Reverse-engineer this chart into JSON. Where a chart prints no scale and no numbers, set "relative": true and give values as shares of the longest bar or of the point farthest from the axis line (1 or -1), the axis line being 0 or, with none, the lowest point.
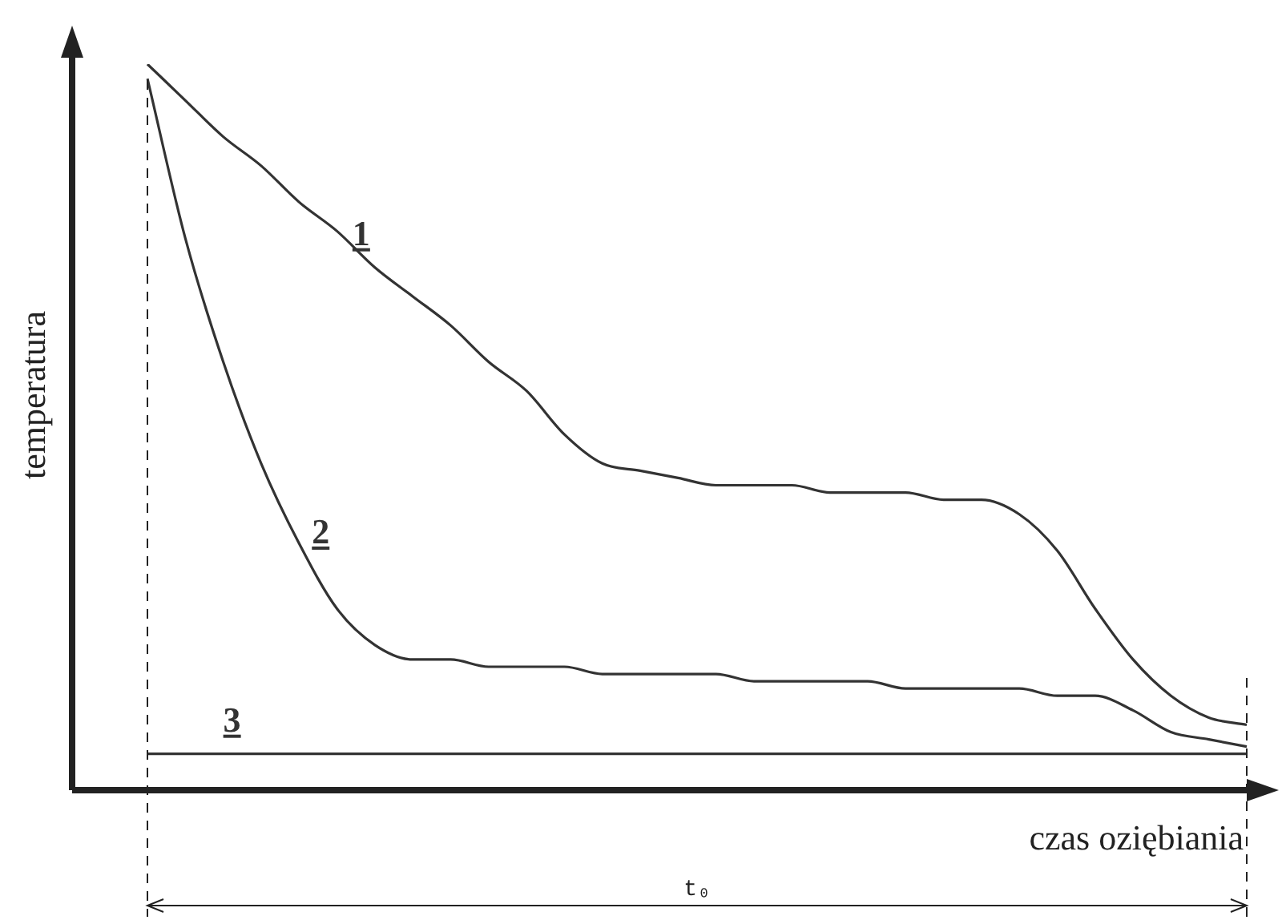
{
  "chart_data": {
    "type": "line",
    "relative": true,
    "xlabel": "czas oziębiania",
    "ylabel": "temperatura",
    "categories": [
      null,
      null,
      null,
      null,
      null,
      null,
      null,
      null,
      null,
      null,
      null,
      null,
      null,
      null,
      null,
      null,
      null,
      null,
      null,
      null,
      null,
      null,
      null,
      null,
      null,
      null,
      null,
      null,
      null,
      null
    ],
    "series": [
      {
        "name": "1",
        "color": "#333333",
        "values": [
          1.0,
          0.95,
          0.9,
          0.86,
          0.81,
          0.77,
          0.72,
          0.68,
          0.64,
          0.59,
          0.55,
          0.49,
          0.45,
          0.44,
          0.43,
          0.42,
          0.42,
          0.42,
          0.41,
          0.41,
          0.41,
          0.4,
          0.4,
          0.38,
          0.33,
          0.25,
          0.18,
          0.13,
          0.1,
          0.09
        ]
      },
      {
        "name": "2",
        "color": "#333333",
        "values": [
          0.98,
          0.76,
          0.59,
          0.45,
          0.34,
          0.25,
          0.2,
          0.18,
          0.18,
          0.17,
          0.17,
          0.17,
          0.16,
          0.16,
          0.16,
          0.16,
          0.15,
          0.15,
          0.15,
          0.15,
          0.14,
          0.14,
          0.14,
          0.14,
          0.13,
          0.13,
          0.11,
          0.08,
          0.07,
          0.06
        ]
      },
      {
        "name": "3",
        "color": "#333333",
        "values": [
          0.05,
          0.05,
          0.05,
          0.05,
          0.05,
          0.05,
          0.05,
          0.05,
          0.05,
          0.05,
          0.05,
          0.05,
          0.05,
          0.05,
          0.05,
          0.05,
          0.05,
          0.05,
          0.05,
          0.05,
          0.05,
          0.05,
          0.05,
          0.05,
          0.05,
          0.05,
          0.05,
          0.05,
          0.05,
          0.05
        ]
      }
    ],
    "annotations": [
      "t₀"
    ],
    "legend": false,
    "marker": "none",
    "line_style": "solid"
  }
}
